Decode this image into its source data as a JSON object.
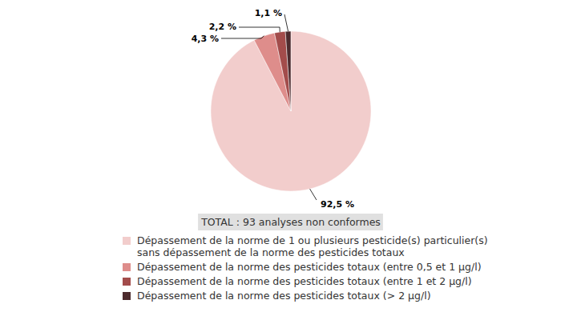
{
  "chart_data": {
    "type": "pie",
    "categories": [
      "Dépassement de la norme de 1 ou plusieurs pesticide(s) particulier(s) sans dépassement de la norme des pesticides totaux",
      "Dépassement de la norme des pesticides totaux (entre 0,5 et 1 µg/l)",
      "Dépassement de la norme des pesticides totaux (entre 1 et 2 µg/l)",
      "Dépassement de la norme des pesticides totaux (> 2 µg/l)"
    ],
    "values": [
      92.5,
      4.3,
      2.2,
      1.1
    ],
    "value_labels": [
      "92,5 %",
      "4,3 %",
      "2,2 %",
      "1,1 %"
    ],
    "colors": [
      "#f2cdcc",
      "#de8d8b",
      "#a34c4b",
      "#4d2b2e"
    ],
    "annotations": [
      "TOTAL : 93 analyses non conformes"
    ],
    "legend": "bottom",
    "data_labels": true
  }
}
